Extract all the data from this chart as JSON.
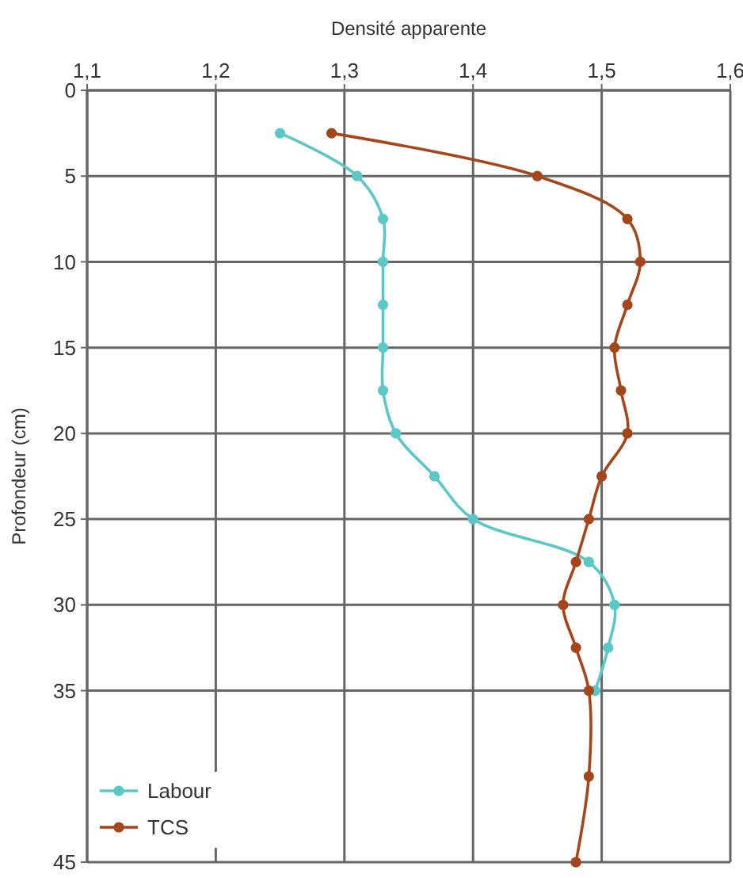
{
  "chart_data": {
    "type": "line",
    "xlabel": "Densité apparente",
    "ylabel": "Profondeur (cm)",
    "xlim": [
      1.1,
      1.6
    ],
    "xticks": [
      {
        "value": 1.1,
        "label": "1,1"
      },
      {
        "value": 1.2,
        "label": "1,2"
      },
      {
        "value": 1.3,
        "label": "1,3"
      },
      {
        "value": 1.4,
        "label": "1,4"
      },
      {
        "value": 1.5,
        "label": "1,5"
      },
      {
        "value": 1.6,
        "label": "1,6"
      }
    ],
    "ylim": [
      45,
      0
    ],
    "yticks": [
      0,
      5,
      10,
      15,
      20,
      25,
      30,
      35,
      45
    ],
    "grid": true,
    "legend": "bottom left",
    "marker": "circle",
    "line_style": "solid",
    "series": [
      {
        "name": "Labour",
        "color": "#5bc8c8",
        "x": [
          1.25,
          1.31,
          1.33,
          1.33,
          1.33,
          1.33,
          1.33,
          1.34,
          1.37,
          1.4,
          1.49,
          1.51,
          1.505,
          1.495
        ],
        "values": [
          2.5,
          5,
          7.5,
          10,
          12.5,
          15,
          17.5,
          20,
          22.5,
          25,
          27.5,
          30,
          32.5,
          35
        ]
      },
      {
        "name": "TCS",
        "color": "#a5461a",
        "x": [
          1.29,
          1.45,
          1.52,
          1.53,
          1.52,
          1.51,
          1.515,
          1.52,
          1.5,
          1.49,
          1.48,
          1.47,
          1.48,
          1.49,
          1.49,
          1.48
        ],
        "values": [
          2.5,
          5,
          7.5,
          10,
          12.5,
          15,
          17.5,
          20,
          22.5,
          25,
          27.5,
          30,
          32.5,
          35,
          40,
          45
        ]
      }
    ]
  }
}
